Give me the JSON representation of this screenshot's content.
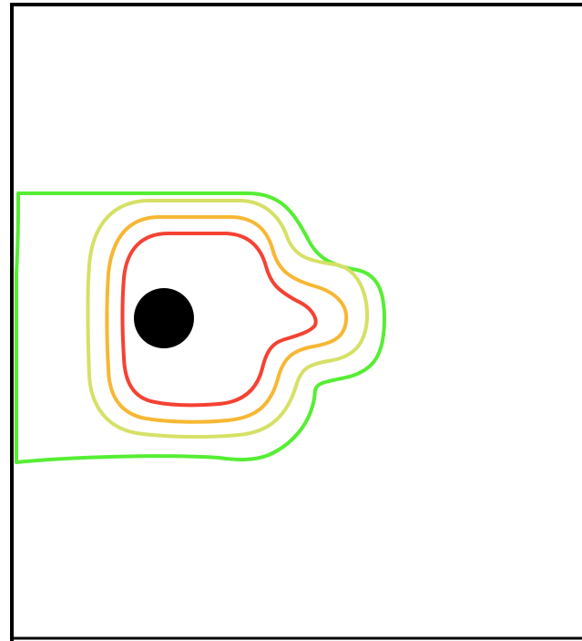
{
  "diagram": {
    "contours": [
      {
        "name": "outer-contour",
        "color": "#55ee33"
      },
      {
        "name": "third-contour",
        "color": "#d6e066"
      },
      {
        "name": "second-contour",
        "color": "#f7b733"
      },
      {
        "name": "inner-contour",
        "color": "#f54233"
      }
    ],
    "source_marker": {
      "name": "source",
      "color": "#000000"
    },
    "frame_color": "#000000"
  }
}
